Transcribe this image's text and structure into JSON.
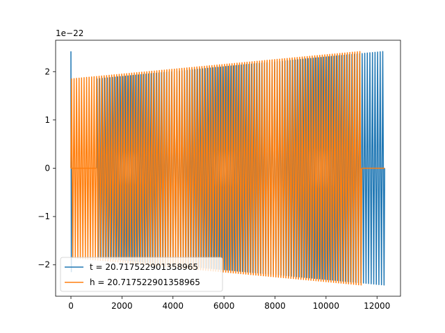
{
  "chart_data": {
    "type": "line",
    "title": "",
    "xlabel": "",
    "ylabel": "",
    "x_ticks": [
      0,
      2000,
      4000,
      6000,
      8000,
      10000,
      12000
    ],
    "x_tick_labels": [
      "0",
      "2000",
      "4000",
      "6000",
      "8000",
      "10000",
      "12000"
    ],
    "y_ticks": [
      -2,
      -1,
      0,
      1,
      2
    ],
    "y_tick_labels": [
      "−2",
      "−1",
      "0",
      "1",
      "2"
    ],
    "y_scale_text": "1e−22",
    "y_multiplier": 1e-22,
    "xlim": [
      -600,
      12920
    ],
    "ylim": [
      -2.65,
      2.65
    ],
    "grid": false,
    "legend_position": "lower-left",
    "series": [
      {
        "name": "t = 20.717522901358965",
        "color": "#1f77b4",
        "start_spike": {
          "x": 0,
          "y_max": 2.42,
          "y_min": -2.15
        },
        "oscillation": {
          "x_start": 1000,
          "x_end": 12300,
          "cycles": 112,
          "envelope_start": 1.85,
          "envelope_end": 2.42
        }
      },
      {
        "name": "h = 20.717522901358965",
        "color": "#ff7f0e",
        "flat_segments": [
          [
            0,
            1000
          ],
          [
            11400,
            12300
          ]
        ],
        "oscillation": {
          "x_start": 0,
          "x_end": 11400,
          "cycles": 116,
          "envelope_start": 1.85,
          "envelope_end": 2.42
        }
      }
    ]
  }
}
